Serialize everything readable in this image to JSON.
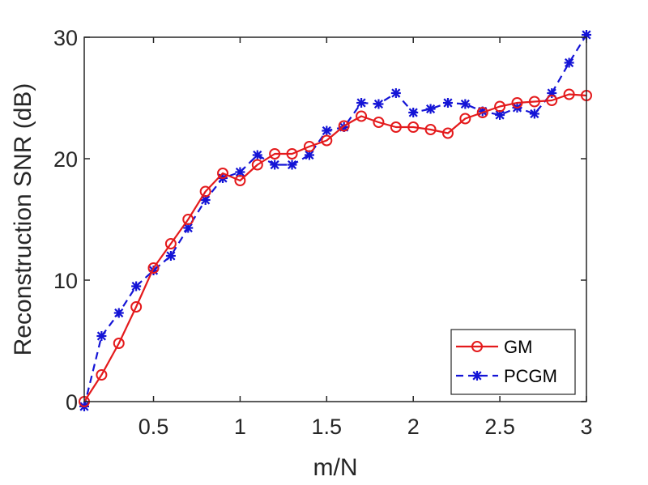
{
  "chart_data": {
    "type": "line",
    "title": "",
    "xlabel": "m/N",
    "ylabel": "Reconstruction SNR (dB)",
    "xlim": [
      0.1,
      3.0
    ],
    "ylim": [
      0,
      30
    ],
    "xticks": [
      0.5,
      1,
      1.5,
      2,
      2.5,
      3
    ],
    "xtick_labels": [
      "0.5",
      "1",
      "1.5",
      "2",
      "2.5",
      "3"
    ],
    "yticks": [
      0,
      10,
      20,
      30
    ],
    "ytick_labels": [
      "0",
      "10",
      "20",
      "30"
    ],
    "legend_position": "bottom-right",
    "x": [
      0.1,
      0.2,
      0.3,
      0.4,
      0.5,
      0.6,
      0.7,
      0.8,
      0.9,
      1.0,
      1.1,
      1.2,
      1.3,
      1.4,
      1.5,
      1.6,
      1.7,
      1.8,
      1.9,
      2.0,
      2.1,
      2.2,
      2.3,
      2.4,
      2.5,
      2.6,
      2.7,
      2.8,
      2.9,
      3.0
    ],
    "series": [
      {
        "name": "GM",
        "color": "#e41a1c",
        "line_style": "solid",
        "marker": "circle",
        "values": [
          0.0,
          2.2,
          4.8,
          7.8,
          11.0,
          13.0,
          15.0,
          17.3,
          18.8,
          18.2,
          19.5,
          20.4,
          20.4,
          21.0,
          21.5,
          22.7,
          23.5,
          23.0,
          22.6,
          22.6,
          22.4,
          22.1,
          23.3,
          23.8,
          24.3,
          24.6,
          24.7,
          24.8,
          25.3,
          25.2
        ]
      },
      {
        "name": "PCGM",
        "color": "#1414d6",
        "line_style": "dashed",
        "marker": "asterisk",
        "values": [
          -0.4,
          5.4,
          7.3,
          9.5,
          10.8,
          12.0,
          14.3,
          16.6,
          18.4,
          18.9,
          20.3,
          19.5,
          19.5,
          20.3,
          22.3,
          22.6,
          24.6,
          24.5,
          25.4,
          23.8,
          24.1,
          24.6,
          24.5,
          23.9,
          23.6,
          24.2,
          23.7,
          25.4,
          27.9,
          30.2
        ]
      }
    ]
  }
}
